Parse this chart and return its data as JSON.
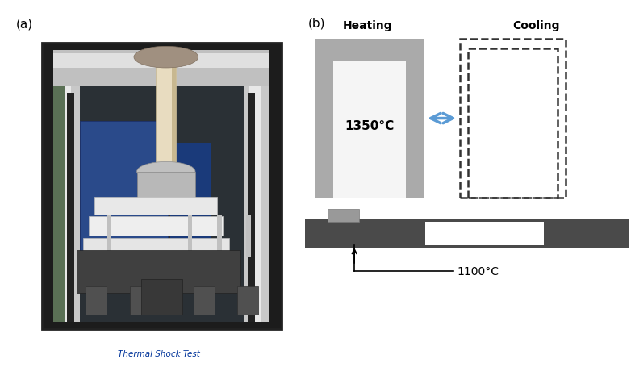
{
  "fig_width": 7.87,
  "fig_height": 4.77,
  "bg_color": "#ffffff",
  "label_a": "(a)",
  "label_b": "(b)",
  "photo_caption": "Thermal Shock Test",
  "heating_label": "Heating",
  "cooling_label": "Cooling",
  "temp_1350": "1350°C",
  "temp_1100": "1100°C",
  "arrow_color": "#5b9bd5"
}
